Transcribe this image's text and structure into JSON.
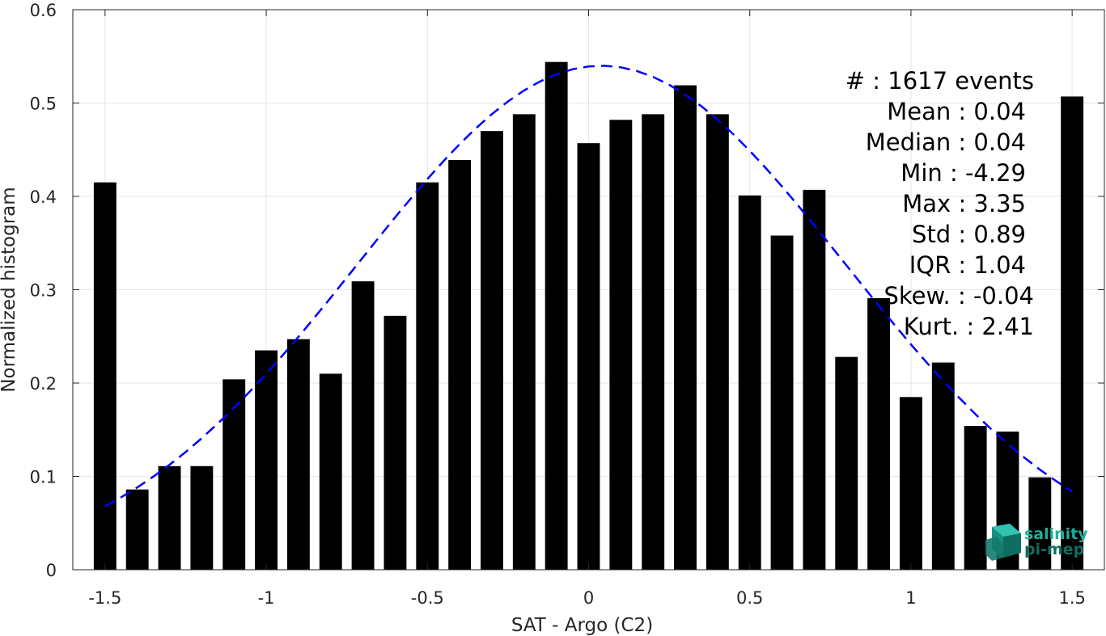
{
  "chart_data": {
    "type": "bar",
    "xlabel": "SAT - Argo (C2)",
    "ylabel": "Normalized histogram",
    "xlim": [
      -1.6,
      1.6
    ],
    "ylim": [
      0,
      0.6
    ],
    "grid": true,
    "xticks": [
      -1.5,
      -1,
      -0.5,
      0,
      0.5,
      1,
      1.5
    ],
    "xtick_labels": [
      "-1.5",
      "-1",
      "-0.5",
      "0",
      "0.5",
      "1",
      "1.5"
    ],
    "yticks": [
      0,
      0.1,
      0.2,
      0.3,
      0.4,
      0.5,
      0.6
    ],
    "ytick_labels": [
      "0",
      "0.1",
      "0.2",
      "0.3",
      "0.4",
      "0.5",
      "0.6"
    ],
    "bar_color": "#000000",
    "bar_width": 0.07,
    "x": [
      -1.5,
      -1.4,
      -1.3,
      -1.2,
      -1.1,
      -1.0,
      -0.9,
      -0.8,
      -0.7,
      -0.6,
      -0.5,
      -0.4,
      -0.3,
      -0.2,
      -0.1,
      0.0,
      0.1,
      0.2,
      0.3,
      0.4,
      0.5,
      0.6,
      0.7,
      0.8,
      0.9,
      1.0,
      1.1,
      1.2,
      1.3,
      1.4,
      1.5
    ],
    "values": [
      0.415,
      0.086,
      0.111,
      0.111,
      0.204,
      0.235,
      0.247,
      0.21,
      0.309,
      0.272,
      0.415,
      0.439,
      0.47,
      0.488,
      0.544,
      0.457,
      0.482,
      0.488,
      0.519,
      0.488,
      0.401,
      0.358,
      0.407,
      0.228,
      0.291,
      0.185,
      0.222,
      0.154,
      0.148,
      0.099,
      0.507
    ],
    "fit_curve": {
      "style": "dashed",
      "color": "#0000ff",
      "mean": 0.04,
      "std": 0.89,
      "x_range": [
        -1.5,
        1.5
      ]
    },
    "stats": [
      {
        "label": "#  ",
        "value": "1617 events"
      },
      {
        "label": "Mean",
        "value": "0.04"
      },
      {
        "label": "Median",
        "value": "0.04"
      },
      {
        "label": "Min",
        "value": "-4.29"
      },
      {
        "label": "Max",
        "value": "3.35"
      },
      {
        "label": "Std",
        "value": "0.89"
      },
      {
        "label": "IQR",
        "value": "1.04"
      },
      {
        "label": "Skew.",
        "value": "-0.04"
      },
      {
        "label": "Kurt.",
        "value": "2.41"
      }
    ]
  },
  "logo": {
    "line1": "salinity",
    "line2": "pi-mep",
    "color1": "#1fae9b",
    "color2": "#0e6e62"
  }
}
